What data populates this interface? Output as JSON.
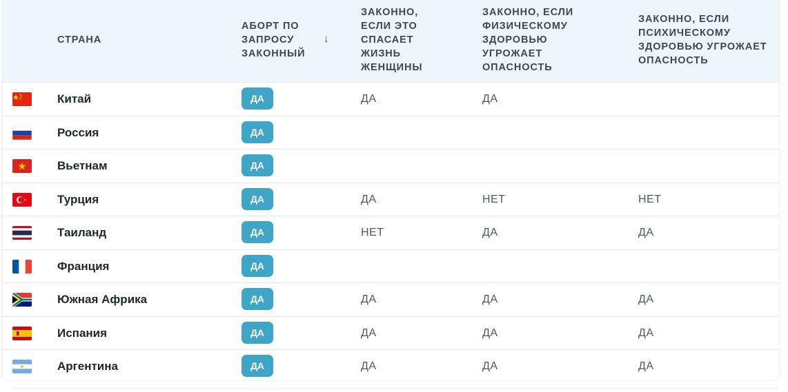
{
  "table": {
    "headers": {
      "country": "СТРАНА",
      "on_request": "АБОРТ ПО ЗАПРОСУ ЗАКОННЫЙ",
      "sort_indicator": "↓",
      "life": "ЗАКОННО, ЕСЛИ ЭТО СПАСАЕТ ЖИЗНЬ ЖЕНЩИНЫ",
      "physical": "ЗАКОННО, ЕСЛИ ФИЗИЧЕСКОМУ ЗДОРОВЬЮ УГРОЖАЕТ ОПАСНОСТЬ",
      "mental": "ЗАКОННО, ЕСЛИ ПСИХИЧЕСКОМУ ЗДОРОВЬЮ УГРОЖАЕТ ОПАСНОСТЬ"
    },
    "rows": [
      {
        "flag_icon": "china-flag-icon",
        "country": "Китай",
        "on_request": "ДА",
        "life": "ДА",
        "physical": "ДА",
        "mental": ""
      },
      {
        "flag_icon": "russia-flag-icon",
        "country": "Россия",
        "on_request": "ДА",
        "life": "",
        "physical": "",
        "mental": ""
      },
      {
        "flag_icon": "vietnam-flag-icon",
        "country": "Вьетнам",
        "on_request": "ДА",
        "life": "",
        "physical": "",
        "mental": ""
      },
      {
        "flag_icon": "turkey-flag-icon",
        "country": "Турция",
        "on_request": "ДА",
        "life": "ДА",
        "physical": "НЕТ",
        "mental": "НЕТ"
      },
      {
        "flag_icon": "thailand-flag-icon",
        "country": "Таиланд",
        "on_request": "ДА",
        "life": "НЕТ",
        "physical": "ДА",
        "mental": "ДА"
      },
      {
        "flag_icon": "france-flag-icon",
        "country": "Франция",
        "on_request": "ДА",
        "life": "",
        "physical": "",
        "mental": ""
      },
      {
        "flag_icon": "south-africa-flag-icon",
        "country": "Южная Африка",
        "on_request": "ДА",
        "life": "ДА",
        "physical": "ДА",
        "mental": "ДА"
      },
      {
        "flag_icon": "spain-flag-icon",
        "country": "Испания",
        "on_request": "ДА",
        "life": "ДА",
        "physical": "ДА",
        "mental": "ДА"
      },
      {
        "flag_icon": "argentina-flag-icon",
        "country": "Аргентина",
        "on_request": "ДА",
        "life": "ДА",
        "physical": "ДА",
        "mental": "ДА"
      }
    ]
  },
  "colors": {
    "header_bg": "#eef6fc",
    "badge_bg": "#3ea5c6",
    "badge_text": "#ffffff",
    "row_divider": "#e6ebf0"
  }
}
